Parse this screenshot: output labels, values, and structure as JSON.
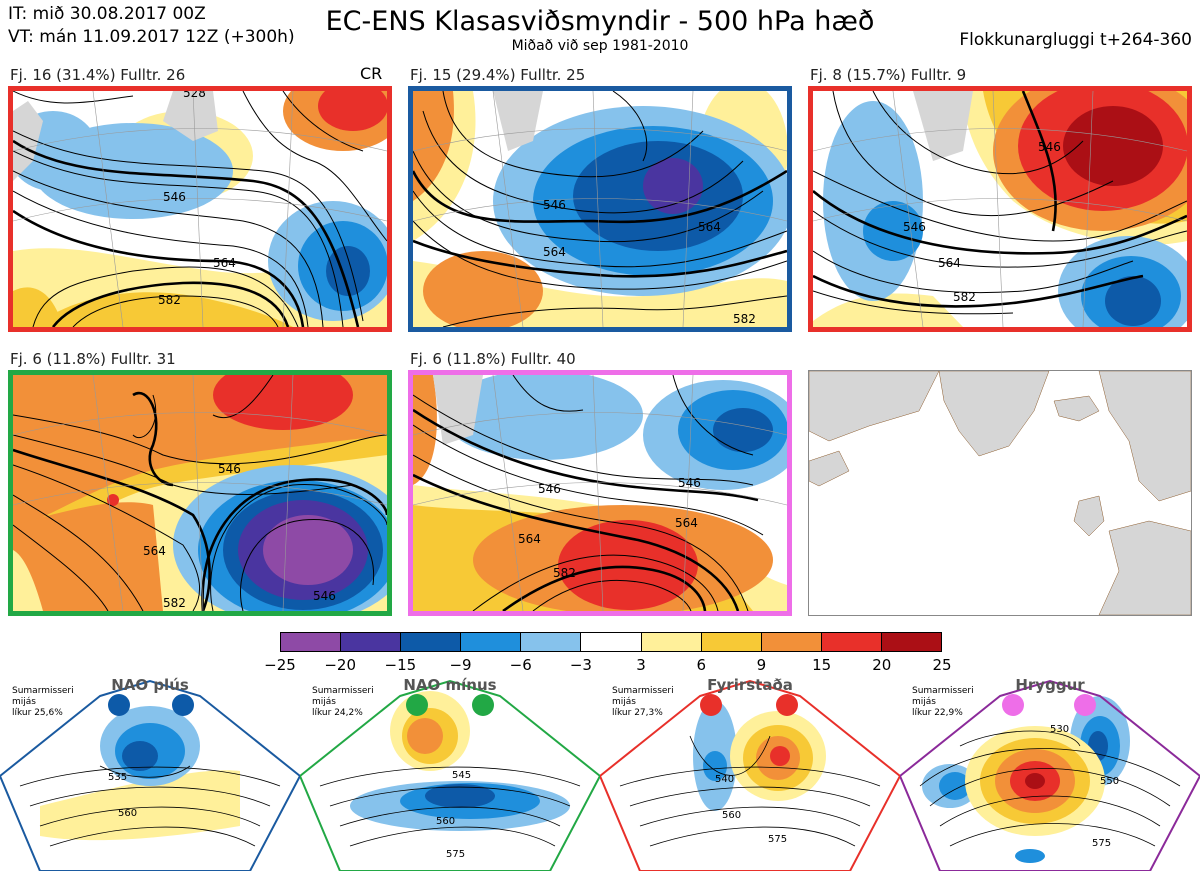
{
  "header": {
    "it": "IT: mið 30.08.2017 00Z",
    "vt": "VT: mán 11.09.2017 12Z  (+300h)",
    "title": "EC-ENS Klasasviðsmyndir - 500 hPa hæð",
    "subtitle": "Miðað við sep 1981-2010",
    "window": "Flokkunargluggi t+264-360"
  },
  "clusters": [
    {
      "label": "Fj. 16 (31.4%)   Fulltr. 26",
      "tag": "CR",
      "border": "#e8302a"
    },
    {
      "label": "Fj. 15 (29.4%)   Fulltr. 25",
      "tag": "",
      "border": "#1a5aa0"
    },
    {
      "label": "Fj. 8 (15.7%)   Fulltr. 9",
      "tag": "",
      "border": "#e8302a"
    },
    {
      "label": "Fj. 6 (11.8%)   Fulltr. 31",
      "tag": "",
      "border": "#22a845"
    },
    {
      "label": "Fj. 6 (11.8%)   Fulltr. 40",
      "tag": "",
      "border": "#ee6ee8"
    }
  ],
  "contour_labels": {
    "p1": [
      "546",
      "564",
      "582",
      "528"
    ],
    "p2": [
      "546",
      "564",
      "564",
      "582"
    ],
    "p3": [
      "546",
      "564",
      "582",
      "546"
    ],
    "p4": [
      "546",
      "564",
      "582",
      "546"
    ],
    "p5": [
      "546",
      "546",
      "564",
      "564",
      "582"
    ]
  },
  "colorbar": {
    "colors": [
      "#8e4aa6",
      "#4a35a0",
      "#0d5aa8",
      "#1f8fdc",
      "#86c2ec",
      "#ffffff",
      "#fff09a",
      "#f7c936",
      "#f29039",
      "#e8302a",
      "#ab0f15"
    ],
    "ticks": [
      "−25",
      "−20",
      "−15",
      "−9",
      "−6",
      "−3",
      "3",
      "6",
      "9",
      "15",
      "20",
      "25"
    ]
  },
  "regimes": [
    {
      "name": "NAO plús",
      "info": [
        "Sumarmisseri",
        "mijás",
        "líkur 25,6%"
      ],
      "color": "#0d5aa8",
      "labels": [
        "535",
        "560"
      ]
    },
    {
      "name": "NAO mínus",
      "info": [
        "Sumarmisseri",
        "mijás",
        "líkur 24,2%"
      ],
      "color": "#22a845",
      "labels": [
        "545",
        "560",
        "575"
      ]
    },
    {
      "name": "Fyrirstaða",
      "info": [
        "Sumarmisseri",
        "mijás",
        "líkur 27,3%"
      ],
      "color": "#e8302a",
      "labels": [
        "540",
        "560",
        "575"
      ]
    },
    {
      "name": "Hryggur",
      "info": [
        "Sumarmisseri",
        "mijás",
        "líkur 22,9%"
      ],
      "color": "#ee6ee8",
      "labels": [
        "530",
        "550",
        "575"
      ]
    }
  ]
}
